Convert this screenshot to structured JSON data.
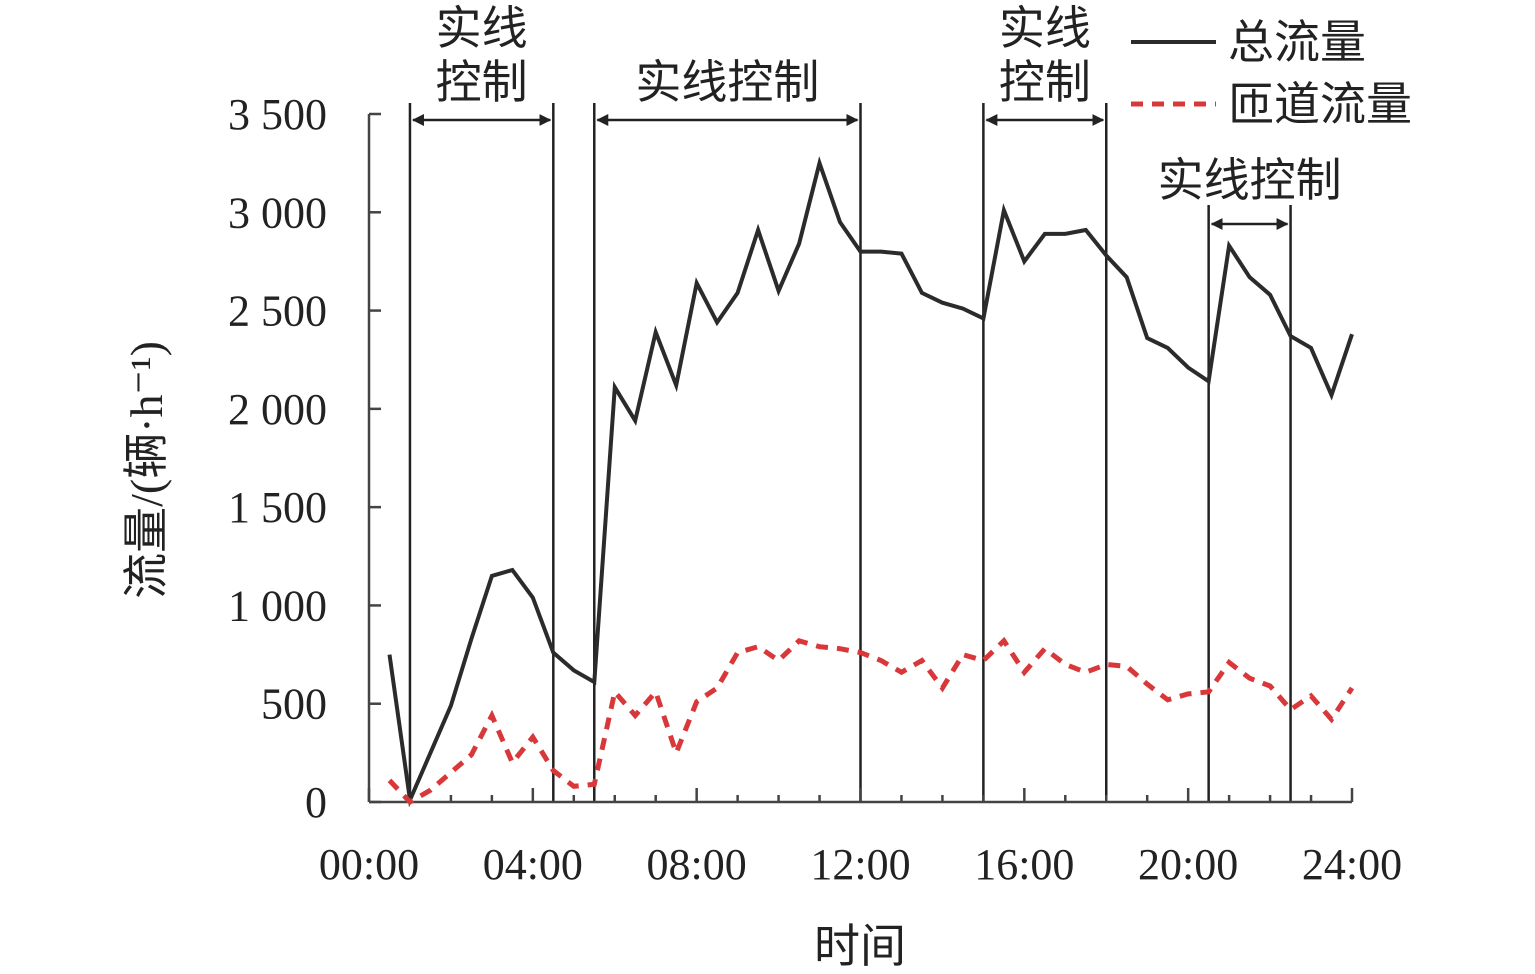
{
  "chart_data": {
    "type": "line",
    "xlabel": "时间",
    "ylabel": "流量/(辆·h⁻¹)",
    "xlim": [
      0,
      24
    ],
    "ylim": [
      0,
      3500
    ],
    "xticks": [
      0,
      4,
      8,
      12,
      16,
      20,
      24
    ],
    "xtick_labels": [
      "00:00",
      "04:00",
      "08:00",
      "12:00",
      "16:00",
      "20:00",
      "24:00"
    ],
    "yticks": [
      0,
      500,
      1000,
      1500,
      2000,
      2500,
      3000,
      3500
    ],
    "ytick_labels": [
      "0",
      "500",
      "1 000",
      "1 500",
      "2 000",
      "2 500",
      "3 000",
      "3 500"
    ],
    "legend_position": "top-right",
    "series": [
      {
        "name": "总流量",
        "style": "solid",
        "color": "#2b2b2b",
        "x": [
          0.5,
          1.0,
          2.0,
          2.5,
          3.0,
          3.5,
          4.0,
          4.5,
          5.0,
          5.5,
          6.0,
          6.5,
          7.0,
          7.5,
          8.0,
          8.5,
          9.0,
          9.5,
          10.0,
          10.5,
          11.0,
          11.5,
          12.0,
          12.5,
          13.0,
          13.5,
          14.0,
          14.5,
          15.0,
          15.5,
          16.0,
          16.5,
          17.0,
          17.5,
          18.0,
          18.5,
          19.0,
          19.5,
          20.0,
          20.5,
          21.0,
          21.5,
          22.0,
          22.5,
          23.0,
          23.5,
          24.0
        ],
        "y": [
          750,
          10,
          490,
          830,
          1150,
          1180,
          1040,
          760,
          670,
          610,
          2110,
          1940,
          2390,
          2120,
          2640,
          2440,
          2590,
          2910,
          2600,
          2840,
          3250,
          2950,
          2800,
          2800,
          2790,
          2590,
          2540,
          2510,
          2460,
          3010,
          2750,
          2890,
          2890,
          2910,
          2780,
          2670,
          2360,
          2310,
          2210,
          2140,
          2830,
          2670,
          2580,
          2370,
          2310,
          2070,
          2380
        ]
      },
      {
        "name": "匝道流量",
        "style": "dashed",
        "color": "#d9383a",
        "x": [
          0.5,
          1.0,
          1.5,
          2.0,
          2.5,
          3.0,
          3.5,
          4.0,
          4.5,
          5.0,
          5.5,
          6.0,
          6.5,
          7.0,
          7.5,
          8.0,
          8.5,
          9.0,
          9.5,
          10.0,
          10.5,
          11.0,
          11.5,
          12.0,
          12.5,
          13.0,
          13.5,
          14.0,
          14.5,
          15.0,
          15.5,
          16.0,
          16.5,
          17.0,
          17.5,
          18.0,
          18.5,
          19.0,
          19.5,
          20.0,
          20.5,
          21.0,
          21.5,
          22.0,
          22.5,
          23.0,
          23.5,
          24.0
        ],
        "y": [
          110,
          0,
          60,
          150,
          240,
          440,
          200,
          330,
          160,
          80,
          90,
          560,
          440,
          560,
          250,
          510,
          580,
          760,
          790,
          720,
          820,
          790,
          780,
          760,
          720,
          660,
          720,
          580,
          750,
          720,
          820,
          660,
          780,
          700,
          660,
          700,
          690,
          600,
          520,
          550,
          560,
          710,
          630,
          590,
          470,
          540,
          420,
          580
        ]
      }
    ],
    "annotations": [
      {
        "label": "实线控制",
        "lines": [
          "实线",
          "控制"
        ],
        "x_start": 1.0,
        "x_end": 4.5
      },
      {
        "label": "实线控制",
        "lines": [
          "实线控制"
        ],
        "x_start": 5.5,
        "x_end": 12.0
      },
      {
        "label": "实线控制",
        "lines": [
          "实线",
          "控制"
        ],
        "x_start": 15.0,
        "x_end": 18.0
      },
      {
        "label": "实线控制",
        "lines": [
          "实线控制"
        ],
        "x_start": 20.5,
        "x_end": 22.5
      }
    ]
  }
}
